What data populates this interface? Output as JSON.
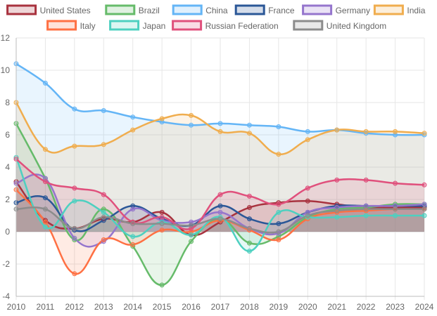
{
  "chart_data": {
    "type": "line",
    "title": "",
    "xlabel": "",
    "ylabel": "",
    "x": [
      2010,
      2011,
      2012,
      2013,
      2014,
      2015,
      2016,
      2017,
      2018,
      2019,
      2020,
      2021,
      2022,
      2023,
      2024
    ],
    "ylim": [
      -4,
      12
    ],
    "yticks": [
      -4,
      -2,
      0,
      2,
      4,
      6,
      8,
      10,
      12
    ],
    "grid": true,
    "legend_position": "top",
    "series": [
      {
        "name": "United States",
        "color": "#a8323e",
        "fill": true,
        "values": [
          3.1,
          0.7,
          0.2,
          0.8,
          0.6,
          1.2,
          -0.2,
          0.6,
          1.5,
          1.8,
          1.9,
          1.7,
          1.5,
          1.5,
          1.5
        ]
      },
      {
        "name": "Brazil",
        "color": "#66bb6a",
        "fill": true,
        "values": [
          6.7,
          3.3,
          -0.5,
          1.4,
          -0.9,
          -3.3,
          -0.6,
          0.8,
          -0.7,
          -0.3,
          0.9,
          1.4,
          1.5,
          1.7,
          1.7
        ]
      },
      {
        "name": "China",
        "color": "#64b5f6",
        "fill": true,
        "values": [
          10.4,
          9.2,
          7.6,
          7.5,
          7.1,
          6.8,
          6.6,
          6.7,
          6.6,
          6.5,
          6.2,
          6.3,
          6.1,
          6.0,
          6.0
        ]
      },
      {
        "name": "France",
        "color": "#2b5797",
        "fill": true,
        "values": [
          1.8,
          2.1,
          0.1,
          0.7,
          1.6,
          0.8,
          0.4,
          1.6,
          0.8,
          0.5,
          1.2,
          1.6,
          1.6,
          1.6,
          1.6
        ]
      },
      {
        "name": "Germany",
        "color": "#9575cd",
        "fill": true,
        "values": [
          3.0,
          3.3,
          -0.4,
          -0.6,
          1.4,
          0.7,
          0.6,
          1.2,
          0.2,
          -0.1,
          1.2,
          1.5,
          1.6,
          1.6,
          1.7
        ]
      },
      {
        "name": "India",
        "color": "#f0ad4e",
        "fill": true,
        "values": [
          8.0,
          5.1,
          5.3,
          5.4,
          6.3,
          7.0,
          7.2,
          6.2,
          6.1,
          4.8,
          5.7,
          6.3,
          6.2,
          6.2,
          6.1
        ]
      },
      {
        "name": "Italy",
        "color": "#ff7043",
        "fill": true,
        "values": [
          2.6,
          0.6,
          -2.6,
          -0.5,
          -0.8,
          0.1,
          0.0,
          0.7,
          0.1,
          -0.5,
          0.8,
          1.2,
          1.3,
          1.4,
          1.4
        ]
      },
      {
        "name": "Japan",
        "color": "#4dd0c0",
        "fill": true,
        "values": [
          4.6,
          0.3,
          1.9,
          1.2,
          -0.3,
          0.6,
          -0.2,
          0.9,
          -1.2,
          1.2,
          0.9,
          0.9,
          1.0,
          1.0,
          1.0
        ]
      },
      {
        "name": "Russian Federation",
        "color": "#e0507c",
        "fill": true,
        "values": [
          4.5,
          3.1,
          2.7,
          2.3,
          0.6,
          0.9,
          0.2,
          2.3,
          2.2,
          1.7,
          2.7,
          3.2,
          3.2,
          3.0,
          2.9
        ]
      },
      {
        "name": "United Kingdom",
        "color": "#8c8c8c",
        "fill": true,
        "values": [
          1.4,
          1.4,
          0.2,
          0.9,
          0.5,
          0.5,
          0.4,
          0.8,
          0.2,
          0.0,
          1.0,
          1.3,
          1.4,
          1.4,
          1.4
        ]
      }
    ]
  }
}
